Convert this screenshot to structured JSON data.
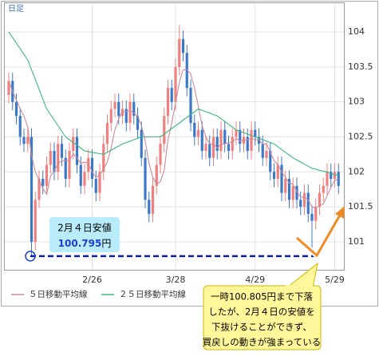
{
  "chart_data": {
    "type": "candlestick",
    "period_label": "日足",
    "categories": [
      null,
      null,
      null,
      null,
      null,
      null,
      null,
      null,
      null,
      null,
      null,
      null,
      null,
      null,
      null,
      null,
      null,
      null,
      null,
      null,
      null,
      null,
      "2/26",
      null,
      null,
      null,
      null,
      null,
      null,
      null,
      null,
      null,
      null,
      null,
      null,
      null,
      null,
      null,
      null,
      null,
      null,
      null,
      null,
      null,
      "3/28",
      null,
      null,
      null,
      null,
      null,
      null,
      null,
      null,
      null,
      null,
      null,
      null,
      null,
      null,
      null,
      null,
      null,
      null,
      null,
      null,
      "4/29",
      null,
      null,
      null,
      null,
      null,
      null,
      null,
      null,
      null,
      null,
      null,
      null,
      null,
      null,
      null,
      null,
      null,
      null,
      null,
      null,
      "5/29",
      null
    ],
    "open": [
      103.1,
      103.3,
      103.0,
      102.8,
      102.5,
      102.4,
      102.5,
      101.0,
      101.6,
      101.9,
      101.8,
      102.1,
      102.3,
      102.0,
      102.4,
      102.2,
      101.9,
      102.3,
      102.5,
      102.1,
      101.8,
      102.0,
      102.2,
      101.9,
      101.7,
      102.0,
      102.4,
      102.7,
      102.9,
      103.0,
      102.8,
      102.9,
      102.7,
      103.0,
      102.8,
      102.6,
      102.2,
      101.6,
      101.4,
      101.8,
      102.1,
      102.4,
      102.8,
      103.2,
      103.0,
      103.5,
      103.9,
      103.7,
      103.2,
      102.7,
      102.5,
      102.6,
      102.3,
      102.4,
      102.2,
      102.5,
      102.3,
      102.6,
      102.4,
      102.3,
      102.5,
      102.6,
      102.4,
      102.5,
      102.3,
      102.6,
      102.5,
      102.4,
      102.2,
      102.3,
      102.0,
      101.9,
      102.1,
      101.7,
      101.9,
      101.6,
      101.8,
      101.6,
      101.5,
      101.7,
      101.4,
      101.3,
      101.5,
      101.7,
      101.8,
      102.0,
      101.9,
      102.0
    ],
    "high": [
      103.42,
      103.42,
      103.12,
      102.92,
      102.62,
      102.62,
      102.62,
      101.72,
      102.02,
      102.02,
      102.22,
      102.42,
      102.42,
      102.52,
      102.52,
      102.32,
      102.42,
      102.62,
      102.62,
      102.22,
      102.12,
      102.32,
      102.32,
      102.02,
      102.12,
      102.52,
      102.82,
      103.02,
      103.12,
      103.12,
      103.02,
      103.02,
      103.12,
      103.12,
      102.92,
      102.72,
      102.32,
      101.72,
      101.92,
      102.22,
      102.52,
      102.92,
      103.32,
      103.32,
      103.62,
      104.1,
      104.02,
      103.82,
      103.32,
      102.82,
      102.72,
      102.72,
      102.52,
      102.52,
      102.62,
      102.62,
      102.72,
      102.72,
      102.52,
      102.62,
      102.72,
      102.72,
      102.62,
      102.62,
      102.72,
      102.72,
      102.62,
      102.52,
      102.42,
      102.42,
      102.12,
      102.22,
      102.22,
      102.02,
      102.02,
      101.92,
      101.92,
      101.72,
      101.82,
      101.82,
      101.52,
      101.62,
      101.82,
      101.92,
      102.12,
      102.12,
      102.12,
      102.12
    ],
    "low": [
      102.98,
      102.88,
      102.68,
      102.38,
      102.28,
      102.28,
      100.795,
      100.88,
      101.48,
      101.68,
      101.68,
      101.98,
      101.88,
      101.88,
      102.08,
      101.78,
      101.78,
      102.18,
      101.98,
      101.68,
      101.68,
      101.88,
      101.78,
      101.58,
      101.58,
      101.88,
      102.28,
      102.58,
      102.78,
      102.68,
      102.68,
      102.58,
      102.58,
      102.68,
      102.48,
      102.08,
      101.48,
      101.28,
      101.28,
      101.68,
      101.98,
      102.28,
      102.68,
      102.88,
      102.88,
      103.38,
      103.58,
      103.08,
      102.58,
      102.38,
      102.38,
      102.18,
      102.18,
      102.08,
      102.08,
      102.18,
      102.18,
      102.28,
      102.18,
      102.18,
      102.38,
      102.28,
      102.28,
      102.18,
      102.18,
      102.38,
      102.28,
      102.08,
      102.08,
      101.88,
      101.78,
      101.78,
      101.58,
      101.58,
      101.48,
      101.48,
      101.48,
      101.38,
      101.38,
      101.28,
      100.805,
      101.18,
      101.38,
      101.58,
      101.68,
      101.78,
      101.78,
      101.68
    ],
    "close": [
      103.3,
      103.0,
      102.8,
      102.5,
      102.4,
      102.5,
      101.0,
      101.6,
      101.9,
      101.8,
      102.1,
      102.3,
      102.0,
      102.4,
      102.2,
      101.9,
      102.3,
      102.5,
      102.1,
      101.8,
      102.0,
      102.2,
      101.9,
      101.7,
      102.0,
      102.4,
      102.7,
      102.9,
      103.0,
      102.8,
      102.9,
      102.7,
      103.0,
      102.8,
      102.6,
      102.2,
      101.6,
      101.4,
      101.8,
      102.1,
      102.4,
      102.8,
      103.2,
      103.0,
      103.5,
      103.9,
      103.7,
      103.2,
      102.7,
      102.5,
      102.6,
      102.3,
      102.4,
      102.2,
      102.5,
      102.3,
      102.6,
      102.4,
      102.3,
      102.5,
      102.6,
      102.4,
      102.5,
      102.3,
      102.6,
      102.5,
      102.4,
      102.2,
      102.3,
      102.0,
      101.9,
      102.1,
      101.7,
      101.9,
      101.6,
      101.8,
      101.6,
      101.5,
      101.7,
      101.4,
      101.3,
      101.5,
      101.7,
      101.8,
      102.0,
      101.9,
      102.0,
      101.8
    ],
    "up_color": "#f08080",
    "down_color": "#3c78c8",
    "series": [
      {
        "name": "５日移動平均線",
        "color": "#c98a9a",
        "values": [
          103.3,
          103.15,
          103.03,
          102.9,
          102.8,
          102.64,
          102.24,
          102.0,
          101.88,
          101.76,
          101.68,
          101.94,
          102.02,
          102.12,
          102.16,
          102.16,
          102.16,
          102.26,
          102.2,
          102.12,
          102.14,
          102.12,
          102.0,
          101.92,
          101.96,
          102.04,
          102.14,
          102.34,
          102.6,
          102.76,
          102.86,
          102.86,
          102.88,
          102.84,
          102.8,
          102.66,
          102.44,
          102.12,
          101.92,
          101.82,
          101.86,
          102.02,
          102.46,
          102.7,
          102.98,
          103.28,
          103.46,
          103.46,
          103.4,
          103.2,
          102.94,
          102.66,
          102.5,
          102.4,
          102.4,
          102.34,
          102.4,
          102.4,
          102.42,
          102.42,
          102.48,
          102.44,
          102.46,
          102.46,
          102.48,
          102.46,
          102.46,
          102.4,
          102.4,
          102.28,
          102.16,
          102.1,
          102.0,
          101.92,
          101.84,
          101.82,
          101.72,
          101.64,
          101.64,
          101.6,
          101.5,
          101.48,
          101.52,
          101.54,
          101.66,
          101.78,
          101.88,
          101.9
        ]
      },
      {
        "name": "２５日移動平均線",
        "color": "#3cb878",
        "values": [
          104.0,
          103.92,
          103.84,
          103.76,
          103.68,
          103.6,
          103.46,
          103.32,
          103.18,
          103.04,
          102.9,
          102.82,
          102.74,
          102.66,
          102.58,
          102.5,
          102.46,
          102.42,
          102.38,
          102.34,
          102.3,
          102.29,
          102.28,
          102.27,
          102.26,
          102.25,
          102.28,
          102.31,
          102.34,
          102.37,
          102.4,
          102.42,
          102.44,
          102.46,
          102.48,
          102.5,
          102.5,
          102.5,
          102.5,
          102.5,
          102.5,
          102.54,
          102.58,
          102.62,
          102.66,
          102.7,
          102.74,
          102.78,
          102.82,
          102.86,
          102.9,
          102.88,
          102.86,
          102.84,
          102.82,
          102.8,
          102.76,
          102.72,
          102.68,
          102.64,
          102.6,
          102.58,
          102.56,
          102.54,
          102.52,
          102.5,
          102.48,
          102.46,
          102.44,
          102.42,
          102.4,
          102.36,
          102.32,
          102.28,
          102.24,
          102.2,
          102.17,
          102.14,
          102.11,
          102.08,
          102.05,
          102.04,
          102.02,
          102.01,
          102.0,
          101.98,
          101.96,
          101.95
        ]
      }
    ],
    "ylim": [
      100.6,
      104.4
    ],
    "yticks": [
      101,
      101.5,
      102,
      102.5,
      103,
      103.5,
      104
    ],
    "grid": true,
    "support_level": 100.795,
    "support_level_color": "#0a1fa0",
    "note_low": {
      "title": "2月４日安値",
      "unit": "円"
    },
    "callout": [
      "一時100.805円まで下落",
      "したが、2月４日の安値を",
      "下抜けることができず、",
      "買戻しの動きが強まっている"
    ]
  }
}
